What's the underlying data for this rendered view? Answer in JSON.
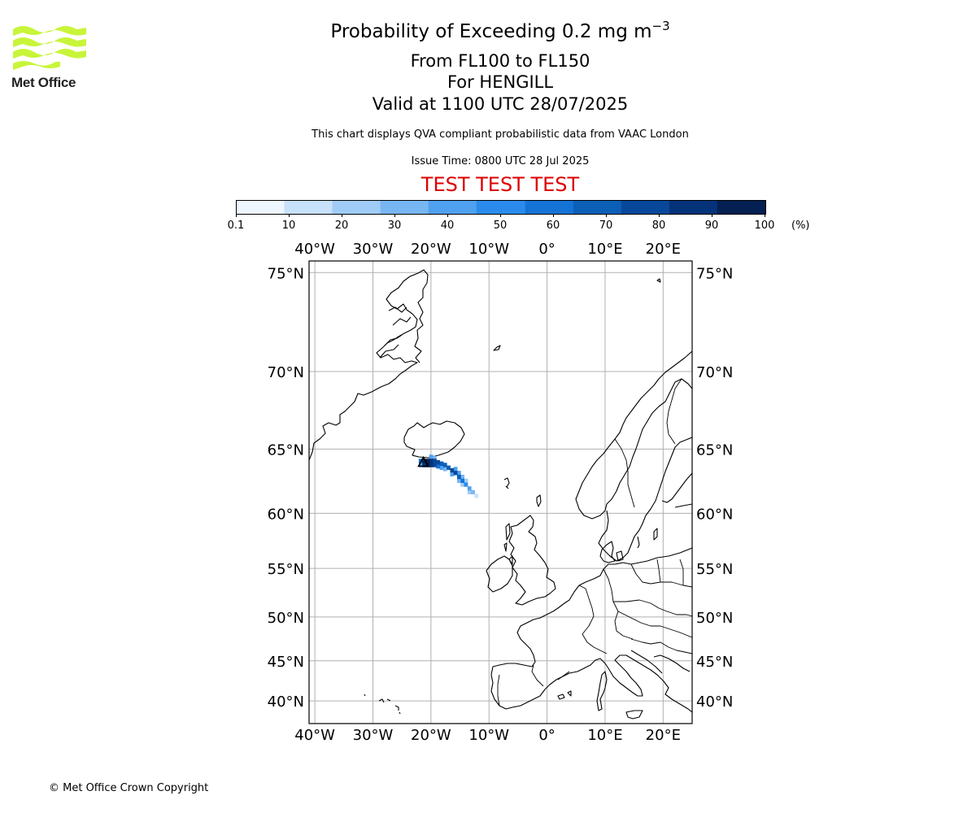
{
  "header": {
    "title_main": "Probability of Exceeding 0.2 mg m",
    "title_exponent": "−3",
    "level_range": "From FL100 to FL150",
    "volcano": "For HENGILL",
    "valid_time": "Valid at 1100 UTC 28/07/2025",
    "subtitle": "This chart displays QVA compliant probabilistic data from VAAC London",
    "issue_time": "Issue Time: 0800 UTC 28 Jul 2025",
    "test_banner": "TEST TEST TEST",
    "test_color": "#dd0000"
  },
  "logo": {
    "text": "Met Office",
    "wave_color": "#c8f53a"
  },
  "colorbar": {
    "unit": "(%)",
    "ticks": [
      "0.1",
      "10",
      "20",
      "30",
      "40",
      "50",
      "60",
      "70",
      "80",
      "90",
      "100"
    ],
    "colors": [
      "#eef6ff",
      "#c7e1fb",
      "#9fccf7",
      "#78b6f3",
      "#4fa1f0",
      "#2a8bec",
      "#1673d6",
      "#0c5fb7",
      "#08489a",
      "#05337a",
      "#041f52"
    ]
  },
  "map": {
    "lon_range": [
      -41,
      25
    ],
    "lat_range": [
      37,
      75.5
    ],
    "lon_labels": [
      "40°W",
      "30°W",
      "20°W",
      "10°W",
      "0°",
      "10°E",
      "20°E"
    ],
    "lon_values": [
      -40,
      -30,
      -20,
      -10,
      0,
      10,
      20
    ],
    "lat_labels": [
      "75°N",
      "70°N",
      "65°N",
      "60°N",
      "55°N",
      "50°N",
      "45°N",
      "40°N"
    ],
    "lat_values": [
      75,
      70,
      65,
      60,
      55,
      50,
      45,
      40
    ],
    "grid": true,
    "grid_color": "#b0b0b0",
    "volcano_symbol": "triangle",
    "volcano_location": {
      "lon": -21.3,
      "lat": 64.05
    },
    "ash_plume": {
      "description_values": "probability percent per cell",
      "cells": [
        {
          "lon": -21.5,
          "lat": 64.3,
          "p": 100
        },
        {
          "lon": -20.9,
          "lat": 64.3,
          "p": 100
        },
        {
          "lon": -20.3,
          "lat": 64.3,
          "p": 90
        },
        {
          "lon": -19.7,
          "lat": 64.3,
          "p": 80
        },
        {
          "lon": -19.1,
          "lat": 64.2,
          "p": 80
        },
        {
          "lon": -18.5,
          "lat": 64.1,
          "p": 70
        },
        {
          "lon": -17.9,
          "lat": 64.0,
          "p": 70
        },
        {
          "lon": -17.3,
          "lat": 63.8,
          "p": 70
        },
        {
          "lon": -16.7,
          "lat": 63.6,
          "p": 80
        },
        {
          "lon": -16.1,
          "lat": 63.4,
          "p": 80
        },
        {
          "lon": -15.5,
          "lat": 63.1,
          "p": 70
        },
        {
          "lon": -14.9,
          "lat": 62.8,
          "p": 60
        },
        {
          "lon": -14.3,
          "lat": 62.5,
          "p": 50
        },
        {
          "lon": -13.7,
          "lat": 62.2,
          "p": 40
        },
        {
          "lon": -13.1,
          "lat": 61.9,
          "p": 30
        },
        {
          "lon": -12.5,
          "lat": 61.6,
          "p": 10
        },
        {
          "lon": -21.5,
          "lat": 64.0,
          "p": 90
        },
        {
          "lon": -20.9,
          "lat": 64.0,
          "p": 100
        },
        {
          "lon": -20.3,
          "lat": 64.0,
          "p": 90
        },
        {
          "lon": -19.7,
          "lat": 64.0,
          "p": 80
        },
        {
          "lon": -19.1,
          "lat": 63.9,
          "p": 60
        },
        {
          "lon": -18.5,
          "lat": 63.8,
          "p": 40
        },
        {
          "lon": -17.9,
          "lat": 63.7,
          "p": 30
        },
        {
          "lon": -22.1,
          "lat": 64.3,
          "p": 60
        },
        {
          "lon": -22.1,
          "lat": 64.0,
          "p": 40
        },
        {
          "lon": -20.3,
          "lat": 64.6,
          "p": 40
        },
        {
          "lon": -19.7,
          "lat": 64.5,
          "p": 30
        },
        {
          "lon": -16.1,
          "lat": 63.7,
          "p": 40
        },
        {
          "lon": -15.5,
          "lat": 63.4,
          "p": 40
        },
        {
          "lon": -14.9,
          "lat": 63.1,
          "p": 30
        },
        {
          "lon": -14.3,
          "lat": 62.8,
          "p": 20
        },
        {
          "lon": -16.7,
          "lat": 63.3,
          "p": 40
        },
        {
          "lon": -15.5,
          "lat": 62.8,
          "p": 30
        },
        {
          "lon": -14.9,
          "lat": 62.5,
          "p": 20
        },
        {
          "lon": -13.7,
          "lat": 61.9,
          "p": 20
        }
      ]
    }
  },
  "footer": {
    "copyright": "© Met Office Crown Copyright"
  }
}
